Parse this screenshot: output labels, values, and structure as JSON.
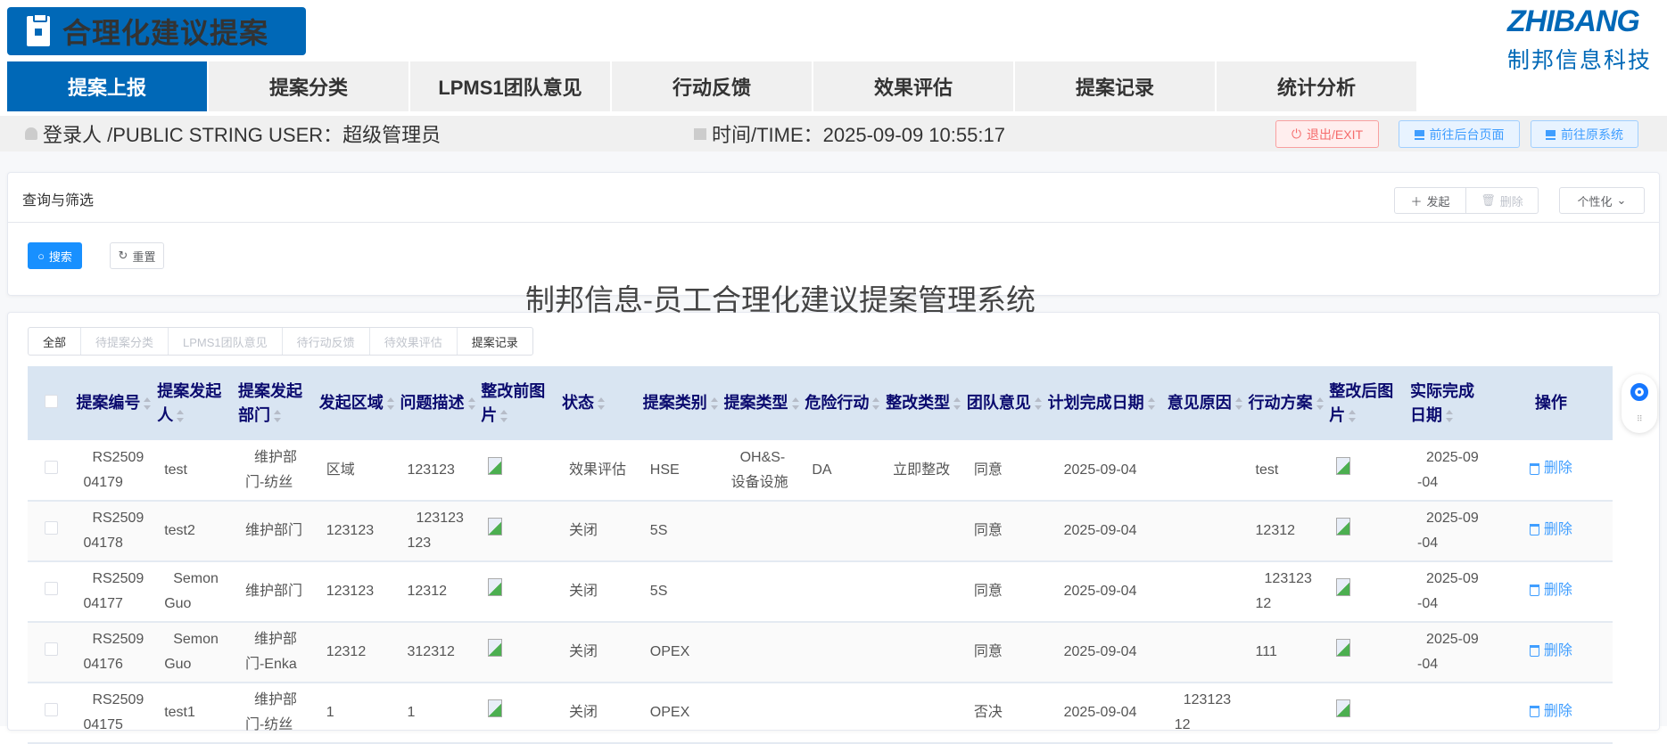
{
  "header": {
    "title": "合理化建议提案",
    "brand_en": "ZHIBANG",
    "brand_cn": "制邦信息科技"
  },
  "nav": [
    {
      "label": "提案上报",
      "active": true
    },
    {
      "label": "提案分类"
    },
    {
      "label": "LPMS1团队意见"
    },
    {
      "label": "行动反馈"
    },
    {
      "label": "效果评估"
    },
    {
      "label": "提案记录"
    },
    {
      "label": "统计分析"
    }
  ],
  "infobar": {
    "user": "登录人 /PUBLIC STRING USER：超级管理员",
    "time": "时间/TIME：2025-09-09 10:55:17",
    "exit": "退出/EXIT",
    "goto_admin": "前往后台页面",
    "goto_old": "前往原系统"
  },
  "filter": {
    "title": "查询与筛选",
    "search": "搜索",
    "reset": "重置",
    "add": "发起",
    "delete": "删除",
    "personalize": "个性化"
  },
  "system_title": "制邦信息-员工合理化建议提案管理系统",
  "segments": [
    {
      "label": "全部",
      "active": true
    },
    {
      "label": "待提案分类"
    },
    {
      "label": "LPMS1团队意见"
    },
    {
      "label": "待行动反馈"
    },
    {
      "label": "待效果评估"
    },
    {
      "label": "提案记录",
      "active": true
    }
  ],
  "table": {
    "columns": [
      "提案编号",
      "提案发起人",
      "提案发起部门",
      "发起区域",
      "问题描述",
      "整改前图片",
      "状态",
      "提案类别",
      "提案类型",
      "危险行动",
      "整改类型",
      "团队意见",
      "计划完成日期",
      "意见原因",
      "行动方案",
      "整改后图片",
      "实际完成日期"
    ],
    "op_header": "操作",
    "delete_label": "删除",
    "rows": [
      [
        "RS250904179",
        "test",
        "维护部门-纺丝",
        "区域",
        "123123",
        "img",
        "效果评估",
        "HSE",
        "OH&S-设备设施",
        "DA",
        "立即整改",
        "同意",
        "2025-09-04",
        "",
        "test",
        "img",
        "2025-09-04"
      ],
      [
        "RS250904178",
        "test2",
        "维护部门",
        "123123",
        "123123123",
        "img",
        "关闭",
        "5S",
        "",
        "",
        "",
        "同意",
        "2025-09-04",
        "",
        "12312",
        "img",
        "2025-09-04"
      ],
      [
        "RS250904177",
        "Semon Guo",
        "维护部门",
        "123123",
        "12312",
        "img",
        "关闭",
        "5S",
        "",
        "",
        "",
        "同意",
        "2025-09-04",
        "",
        "12312312",
        "img",
        "2025-09-04"
      ],
      [
        "RS250904176",
        "Semon Guo",
        "维护部门-Enka",
        "12312",
        "312312",
        "img",
        "关闭",
        "OPEX",
        "",
        "",
        "",
        "同意",
        "2025-09-04",
        "",
        "111",
        "img",
        "2025-09-04"
      ],
      [
        "RS250904175",
        "test1",
        "维护部门-纺丝",
        "1",
        "1",
        "img",
        "关闭",
        "OPEX",
        "",
        "",
        "",
        "否决",
        "2025-09-04",
        "12312312",
        "",
        "img",
        ""
      ]
    ]
  }
}
